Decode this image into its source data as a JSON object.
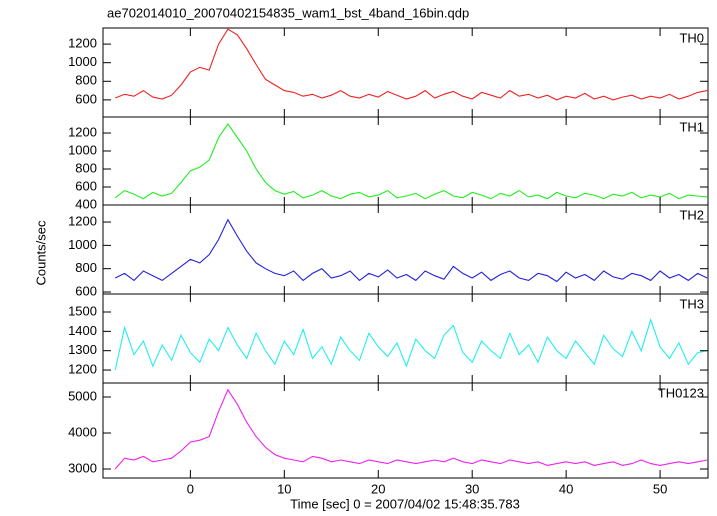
{
  "title": "ae702014010_20070402154835_wam1_bst_4band_16bin.qdp",
  "ylabel": "Counts/sec",
  "xlabel": "Time [sec] 0 = 2007/04/02 15:48:35.783",
  "xlim": [
    -9.3,
    55.1
  ],
  "xticks": [
    0,
    10,
    20,
    30,
    40,
    50
  ],
  "chart_data": [
    {
      "type": "line",
      "label": "TH0",
      "color": "#ee2222",
      "ylim": [
        416,
        1373
      ],
      "yticks": [
        600,
        800,
        1000,
        1200
      ],
      "x": [
        -8,
        -7,
        -6,
        -5,
        -4,
        -3,
        -2,
        -1,
        0,
        1,
        2,
        3,
        4,
        5,
        6,
        7,
        8,
        9,
        10,
        11,
        12,
        13,
        14,
        15,
        16,
        17,
        18,
        19,
        20,
        21,
        22,
        23,
        24,
        25,
        26,
        27,
        28,
        29,
        30,
        31,
        32,
        33,
        34,
        35,
        36,
        37,
        38,
        39,
        40,
        41,
        42,
        43,
        44,
        45,
        46,
        47,
        48,
        49,
        50,
        51,
        52,
        53,
        54,
        55
      ],
      "values": [
        620,
        660,
        640,
        700,
        630,
        610,
        650,
        760,
        900,
        950,
        920,
        1200,
        1360,
        1300,
        1150,
        980,
        820,
        760,
        700,
        680,
        640,
        660,
        620,
        650,
        700,
        640,
        620,
        660,
        630,
        690,
        650,
        610,
        640,
        700,
        620,
        660,
        690,
        640,
        610,
        680,
        650,
        620,
        700,
        640,
        660,
        620,
        650,
        600,
        640,
        620,
        670,
        610,
        640,
        600,
        630,
        650,
        610,
        640,
        620,
        660,
        610,
        640,
        680,
        700
      ]
    },
    {
      "type": "line",
      "label": "TH1",
      "color": "#22ee22",
      "ylim": [
        400,
        1378
      ],
      "yticks": [
        400,
        600,
        800,
        1000,
        1200
      ],
      "x": [
        -8,
        -7,
        -6,
        -5,
        -4,
        -3,
        -2,
        -1,
        0,
        1,
        2,
        3,
        4,
        5,
        6,
        7,
        8,
        9,
        10,
        11,
        12,
        13,
        14,
        15,
        16,
        17,
        18,
        19,
        20,
        21,
        22,
        23,
        24,
        25,
        26,
        27,
        28,
        29,
        30,
        31,
        32,
        33,
        34,
        35,
        36,
        37,
        38,
        39,
        40,
        41,
        42,
        43,
        44,
        45,
        46,
        47,
        48,
        49,
        50,
        51,
        52,
        53,
        54,
        55
      ],
      "values": [
        480,
        560,
        520,
        470,
        540,
        500,
        530,
        650,
        780,
        820,
        900,
        1150,
        1300,
        1150,
        1000,
        800,
        650,
        560,
        520,
        550,
        480,
        510,
        560,
        500,
        470,
        520,
        540,
        490,
        510,
        560,
        480,
        500,
        530,
        470,
        520,
        560,
        500,
        480,
        540,
        510,
        470,
        530,
        500,
        560,
        490,
        510,
        470,
        540,
        500,
        480,
        530,
        510,
        470,
        520,
        500,
        540,
        480,
        510,
        490,
        530,
        470,
        510,
        500,
        490
      ]
    },
    {
      "type": "line",
      "label": "TH2",
      "color": "#2222dd",
      "ylim": [
        583,
        1346
      ],
      "yticks": [
        600,
        800,
        1000,
        1200
      ],
      "x": [
        -8,
        -7,
        -6,
        -5,
        -4,
        -3,
        -2,
        -1,
        0,
        1,
        2,
        3,
        4,
        5,
        6,
        7,
        8,
        9,
        10,
        11,
        12,
        13,
        14,
        15,
        16,
        17,
        18,
        19,
        20,
        21,
        22,
        23,
        24,
        25,
        26,
        27,
        28,
        29,
        30,
        31,
        32,
        33,
        34,
        35,
        36,
        37,
        38,
        39,
        40,
        41,
        42,
        43,
        44,
        45,
        46,
        47,
        48,
        49,
        50,
        51,
        52,
        53,
        54,
        55
      ],
      "values": [
        720,
        760,
        700,
        780,
        740,
        700,
        760,
        820,
        880,
        850,
        920,
        1050,
        1220,
        1080,
        950,
        850,
        800,
        760,
        740,
        780,
        700,
        760,
        800,
        720,
        740,
        780,
        700,
        760,
        730,
        790,
        720,
        750,
        700,
        780,
        740,
        710,
        820,
        760,
        720,
        770,
        700,
        750,
        780,
        720,
        700,
        760,
        740,
        690,
        770,
        720,
        750,
        700,
        780,
        730,
        710,
        760,
        740,
        700,
        780,
        720,
        750,
        700,
        760,
        720
      ]
    },
    {
      "type": "line",
      "label": "TH3",
      "color": "#22eeee",
      "ylim": [
        1133,
        1593
      ],
      "yticks": [
        1200,
        1300,
        1400,
        1500
      ],
      "x": [
        -8,
        -7,
        -6,
        -5,
        -4,
        -3,
        -2,
        -1,
        0,
        1,
        2,
        3,
        4,
        5,
        6,
        7,
        8,
        9,
        10,
        11,
        12,
        13,
        14,
        15,
        16,
        17,
        18,
        19,
        20,
        21,
        22,
        23,
        24,
        25,
        26,
        27,
        28,
        29,
        30,
        31,
        32,
        33,
        34,
        35,
        36,
        37,
        38,
        39,
        40,
        41,
        42,
        43,
        44,
        45,
        46,
        47,
        48,
        49,
        50,
        51,
        52,
        53,
        54,
        55
      ],
      "values": [
        1200,
        1420,
        1280,
        1350,
        1220,
        1330,
        1250,
        1380,
        1290,
        1240,
        1360,
        1300,
        1420,
        1330,
        1260,
        1390,
        1300,
        1230,
        1350,
        1280,
        1410,
        1260,
        1320,
        1230,
        1370,
        1300,
        1250,
        1390,
        1320,
        1270,
        1340,
        1220,
        1360,
        1300,
        1260,
        1380,
        1430,
        1290,
        1240,
        1350,
        1300,
        1260,
        1390,
        1280,
        1330,
        1240,
        1370,
        1300,
        1260,
        1350,
        1290,
        1230,
        1380,
        1310,
        1270,
        1400,
        1300,
        1460,
        1320,
        1260,
        1340,
        1230,
        1290,
        1300
      ]
    },
    {
      "type": "line",
      "label": "TH0123",
      "color": "#ee22ee",
      "ylim": [
        2750,
        5389
      ],
      "yticks": [
        3000,
        4000,
        5000
      ],
      "x": [
        -8,
        -7,
        -6,
        -5,
        -4,
        -3,
        -2,
        -1,
        0,
        1,
        2,
        3,
        4,
        5,
        6,
        7,
        8,
        9,
        10,
        11,
        12,
        13,
        14,
        15,
        16,
        17,
        18,
        19,
        20,
        21,
        22,
        23,
        24,
        25,
        26,
        27,
        28,
        29,
        30,
        31,
        32,
        33,
        34,
        35,
        36,
        37,
        38,
        39,
        40,
        41,
        42,
        43,
        44,
        45,
        46,
        47,
        48,
        49,
        50,
        51,
        52,
        53,
        54,
        55
      ],
      "values": [
        3000,
        3300,
        3250,
        3350,
        3200,
        3250,
        3300,
        3500,
        3750,
        3800,
        3900,
        4600,
        5200,
        4800,
        4300,
        3900,
        3600,
        3400,
        3300,
        3250,
        3200,
        3350,
        3300,
        3200,
        3250,
        3200,
        3150,
        3250,
        3200,
        3150,
        3250,
        3200,
        3150,
        3200,
        3250,
        3200,
        3300,
        3200,
        3150,
        3250,
        3200,
        3150,
        3250,
        3200,
        3150,
        3200,
        3100,
        3150,
        3200,
        3150,
        3200,
        3100,
        3150,
        3200,
        3100,
        3150,
        3250,
        3150,
        3100,
        3150,
        3200,
        3150,
        3200,
        3250
      ]
    }
  ]
}
